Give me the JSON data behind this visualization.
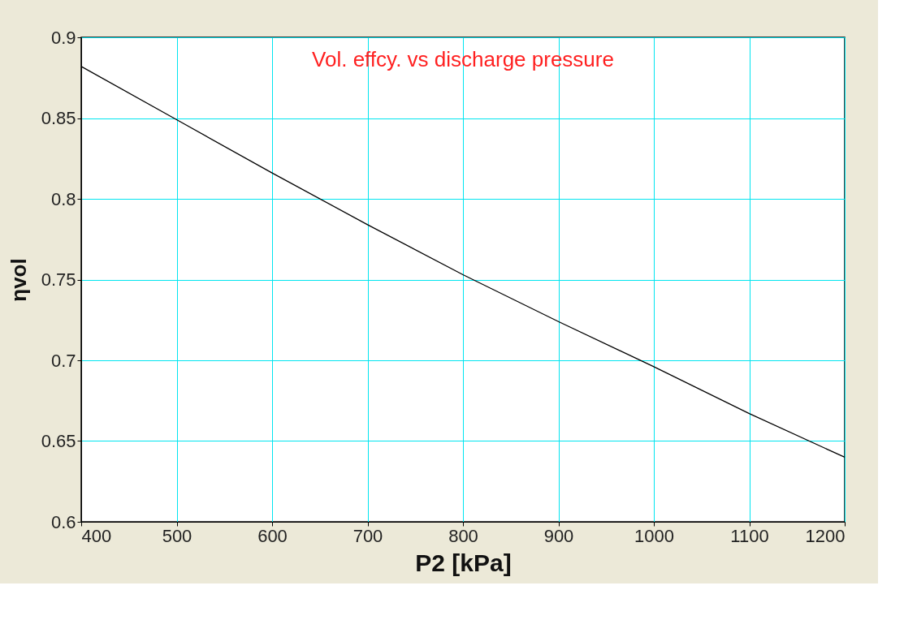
{
  "chart_data": {
    "type": "line",
    "annotations": [
      "Vol. effcy. vs discharge pressure"
    ],
    "xlabel": "P2  [kPa]",
    "ylabel": "ηvol",
    "x": [
      400,
      500,
      600,
      700,
      800,
      900,
      1000,
      1100,
      1200
    ],
    "series": [
      {
        "color": "#000000",
        "values": [
          0.882,
          0.849,
          0.816,
          0.784,
          0.753,
          0.724,
          0.696,
          0.667,
          0.64
        ]
      }
    ],
    "xlim": [
      400,
      1200
    ],
    "ylim": [
      0.6,
      0.9
    ],
    "xticks": [
      400,
      500,
      600,
      700,
      800,
      900,
      1000,
      1100,
      1200
    ],
    "yticks": [
      0.6,
      0.65,
      0.7,
      0.75,
      0.8,
      0.85,
      0.9
    ],
    "grid": true,
    "marker": "none",
    "line_style": "solid"
  }
}
